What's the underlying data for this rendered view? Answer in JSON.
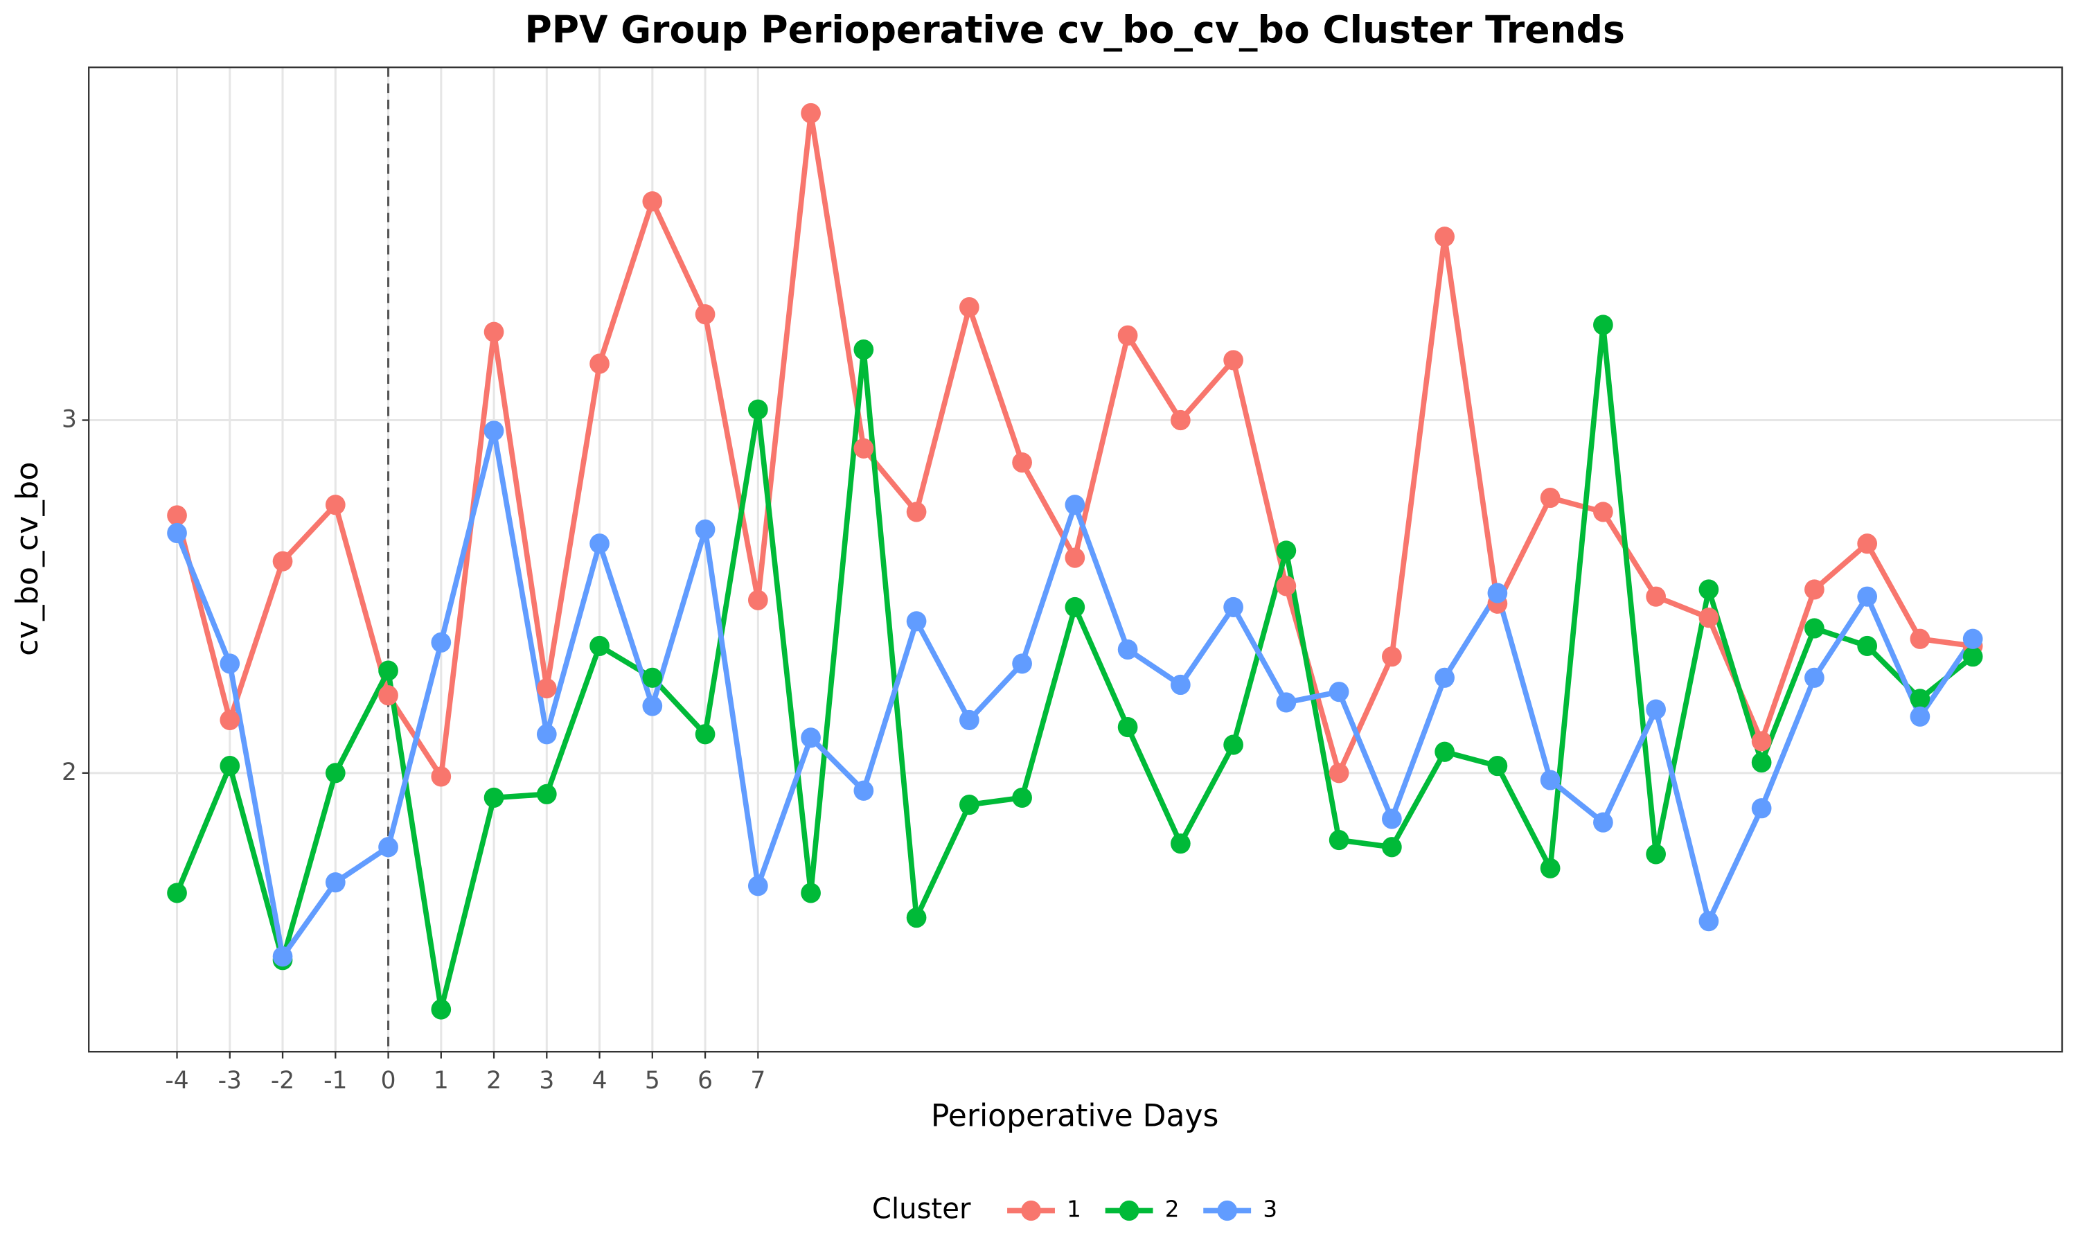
{
  "chart_data": {
    "type": "line",
    "title": "PPV Group Perioperative cv_bo_cv_bo Cluster Trends",
    "x_label": "Perioperative Days",
    "y_label": "cv_bo_cv_bo",
    "legend_title": "Cluster",
    "x": [
      -4,
      -3,
      -2,
      -1,
      0,
      1,
      2,
      3,
      4,
      5,
      6,
      7,
      8,
      9,
      10,
      11,
      12,
      13,
      14,
      15,
      16,
      17,
      18,
      19,
      20,
      21,
      22,
      23,
      24,
      25,
      26,
      27,
      28,
      29,
      30
    ],
    "series": [
      {
        "name": "1",
        "color": "#f8766d",
        "values": [
          2.73,
          2.15,
          2.6,
          2.76,
          2.22,
          1.99,
          3.25,
          2.24,
          3.16,
          3.62,
          3.3,
          2.49,
          3.87,
          2.92,
          2.74,
          3.32,
          2.88,
          2.61,
          3.24,
          3.0,
          3.17,
          2.53,
          2.0,
          2.33,
          3.52,
          2.48,
          2.78,
          2.74,
          2.5,
          2.44,
          2.09,
          2.52,
          2.65,
          2.38,
          2.36
        ]
      },
      {
        "name": "2",
        "color": "#00ba38",
        "values": [
          1.66,
          2.02,
          1.47,
          2.0,
          2.29,
          1.33,
          1.93,
          1.94,
          2.36,
          2.27,
          2.11,
          3.03,
          1.66,
          3.2,
          1.59,
          1.91,
          1.93,
          2.47,
          2.13,
          1.8,
          2.08,
          2.63,
          1.81,
          1.79,
          2.06,
          2.02,
          1.73,
          3.27,
          1.77,
          2.52,
          2.03,
          2.41,
          2.36,
          2.21,
          2.33
        ]
      },
      {
        "name": "3",
        "color": "#619cff",
        "values": [
          2.68,
          2.31,
          1.48,
          1.69,
          1.79,
          2.37,
          2.97,
          2.11,
          2.65,
          2.19,
          2.69,
          1.68,
          2.1,
          1.95,
          2.43,
          2.15,
          2.31,
          2.76,
          2.35,
          2.25,
          2.47,
          2.2,
          2.23,
          1.87,
          2.27,
          2.51,
          1.98,
          1.86,
          2.18,
          1.58,
          1.9,
          2.27,
          2.5,
          2.16,
          2.38
        ]
      }
    ],
    "xlim": [
      -5.67,
      31.69
    ],
    "xticks": [
      -4,
      -3,
      -2,
      -1,
      0,
      1,
      2,
      3,
      4,
      5,
      6,
      7
    ],
    "ylim": [
      1.21,
      4.0
    ],
    "yticks": [
      2,
      3
    ],
    "vline": 0,
    "grid": true,
    "legend_position": "bottom"
  }
}
